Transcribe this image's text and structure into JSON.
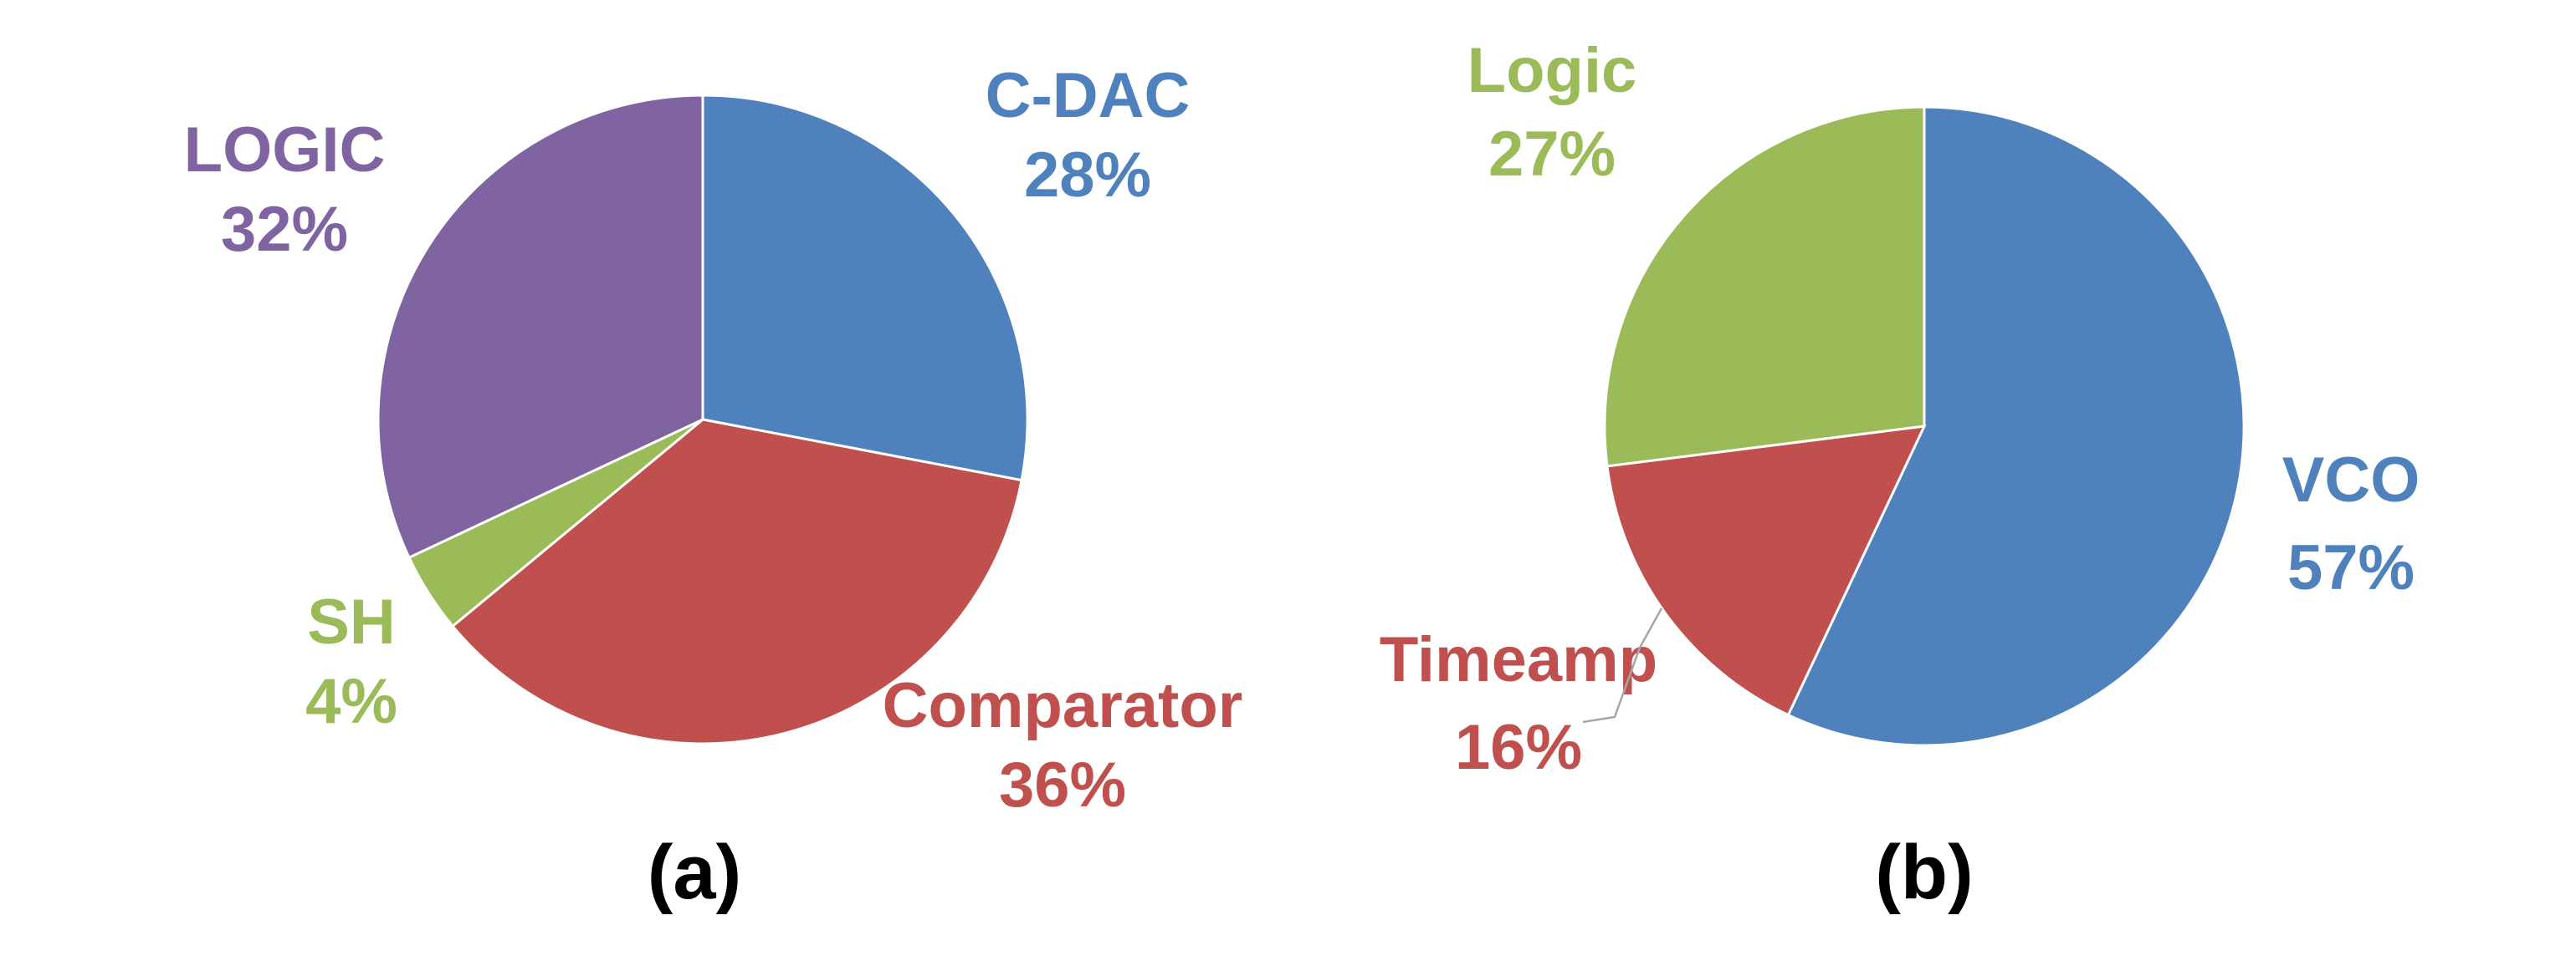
{
  "chart_data": [
    {
      "type": "pie",
      "caption": "(a)",
      "slices": [
        {
          "label": "C-DAC",
          "value": 28,
          "value_label": "28%",
          "color": "#4F81BD"
        },
        {
          "label": "Comparator",
          "value": 36,
          "value_label": "36%",
          "color": "#C0504D"
        },
        {
          "label": "SH",
          "value": 4,
          "value_label": "4%",
          "color": "#9BBB59"
        },
        {
          "label": "LOGIC",
          "value": 32,
          "value_label": "32%",
          "color": "#8064A2"
        }
      ]
    },
    {
      "type": "pie",
      "caption": "(b)",
      "slices": [
        {
          "label": "VCO",
          "value": 57,
          "value_label": "57%",
          "color": "#4F81BD"
        },
        {
          "label": "Timeamp",
          "value": 16,
          "value_label": "16%",
          "color": "#C0504D"
        },
        {
          "label": "Logic",
          "value": 27,
          "value_label": "27%",
          "color": "#9BBB59"
        }
      ]
    }
  ]
}
